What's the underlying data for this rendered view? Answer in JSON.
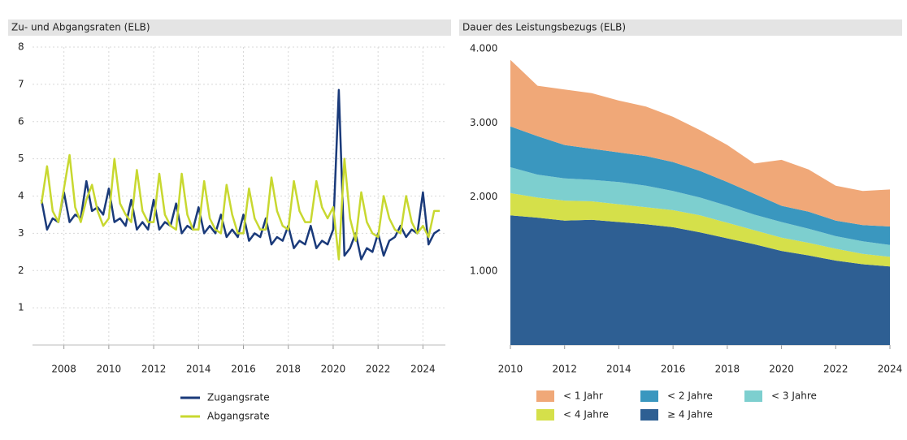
{
  "chart_data": [
    {
      "type": "line",
      "title": "Zu- und Abgangsraten (ELB)",
      "x": [
        2007,
        2007.25,
        2007.5,
        2007.75,
        2008,
        2008.25,
        2008.5,
        2008.75,
        2009,
        2009.25,
        2009.5,
        2009.75,
        2010,
        2010.25,
        2010.5,
        2010.75,
        2011,
        2011.25,
        2011.5,
        2011.75,
        2012,
        2012.25,
        2012.5,
        2012.75,
        2013,
        2013.25,
        2013.5,
        2013.75,
        2014,
        2014.25,
        2014.5,
        2014.75,
        2015,
        2015.25,
        2015.5,
        2015.75,
        2016,
        2016.25,
        2016.5,
        2016.75,
        2017,
        2017.25,
        2017.5,
        2017.75,
        2018,
        2018.25,
        2018.5,
        2018.75,
        2019,
        2019.25,
        2019.5,
        2019.75,
        2020,
        2020.25,
        2020.5,
        2020.75,
        2021,
        2021.25,
        2021.5,
        2021.75,
        2022,
        2022.25,
        2022.5,
        2022.75,
        2023,
        2023.25,
        2023.5,
        2023.75,
        2024,
        2024.25,
        2024.5,
        2024.75
      ],
      "series": [
        {
          "name": "Zugangsrate",
          "color": "#1a3a7a",
          "values": [
            3.9,
            3.1,
            3.4,
            3.3,
            4.1,
            3.3,
            3.5,
            3.4,
            4.4,
            3.6,
            3.7,
            3.5,
            4.2,
            3.3,
            3.4,
            3.2,
            3.9,
            3.1,
            3.3,
            3.1,
            3.9,
            3.1,
            3.3,
            3.2,
            3.8,
            3.0,
            3.2,
            3.1,
            3.7,
            3.0,
            3.2,
            3.0,
            3.5,
            2.9,
            3.1,
            2.9,
            3.5,
            2.8,
            3.0,
            2.9,
            3.4,
            2.7,
            2.9,
            2.8,
            3.2,
            2.6,
            2.8,
            2.7,
            3.2,
            2.6,
            2.8,
            2.7,
            3.1,
            6.85,
            2.4,
            2.6,
            3.0,
            2.3,
            2.6,
            2.5,
            3.0,
            2.4,
            2.8,
            2.9,
            3.2,
            2.9,
            3.1,
            3.0,
            4.1,
            2.7,
            3.0,
            3.1
          ]
        },
        {
          "name": "Abgangsrate",
          "color": "#c8d830",
          "values": [
            3.8,
            4.8,
            3.6,
            3.3,
            4.2,
            5.1,
            3.7,
            3.3,
            3.9,
            4.3,
            3.6,
            3.2,
            3.4,
            5.0,
            3.8,
            3.5,
            3.3,
            4.7,
            3.6,
            3.3,
            3.3,
            4.6,
            3.5,
            3.2,
            3.1,
            4.6,
            3.5,
            3.1,
            3.1,
            4.4,
            3.4,
            3.1,
            3.0,
            4.3,
            3.5,
            3.0,
            3.0,
            4.2,
            3.4,
            3.1,
            3.1,
            4.5,
            3.6,
            3.2,
            3.1,
            4.4,
            3.6,
            3.3,
            3.3,
            4.4,
            3.7,
            3.4,
            3.7,
            2.3,
            5.0,
            3.4,
            2.8,
            4.1,
            3.3,
            3.0,
            2.9,
            4.0,
            3.4,
            3.1,
            3.0,
            4.0,
            3.3,
            3.0,
            3.2,
            2.9,
            3.6,
            3.6
          ]
        }
      ],
      "xlim": [
        2006.6,
        2025
      ],
      "xticks": [
        2008,
        2010,
        2012,
        2014,
        2016,
        2018,
        2020,
        2022,
        2024
      ],
      "ylim": [
        0,
        8
      ],
      "yticks": [
        1,
        2,
        3,
        4,
        5,
        6,
        7,
        8
      ],
      "grid": true
    },
    {
      "type": "area",
      "title": "Dauer des Leistungsbezugs (ELB)",
      "x": [
        2010,
        2011,
        2012,
        2013,
        2014,
        2015,
        2016,
        2017,
        2018,
        2019,
        2020,
        2021,
        2022,
        2023,
        2024
      ],
      "series": [
        {
          "name": "≥ 4 Jahre",
          "color": "#2e5f93",
          "values": [
            1750,
            1720,
            1680,
            1690,
            1660,
            1630,
            1590,
            1520,
            1440,
            1360,
            1270,
            1210,
            1140,
            1090,
            1060
          ]
        },
        {
          "name": "< 4 Jahre",
          "color": "#d5e04a",
          "values": [
            300,
            270,
            270,
            250,
            240,
            230,
            230,
            230,
            210,
            190,
            180,
            170,
            160,
            140,
            130
          ]
        },
        {
          "name": "< 3 Jahre",
          "color": "#7dcfcf",
          "values": [
            350,
            310,
            300,
            290,
            300,
            290,
            260,
            240,
            230,
            210,
            210,
            190,
            170,
            170,
            160
          ]
        },
        {
          "name": "< 2 Jahre",
          "color": "#3a97bf",
          "values": [
            550,
            520,
            450,
            420,
            400,
            400,
            390,
            360,
            320,
            280,
            220,
            230,
            210,
            220,
            250
          ]
        },
        {
          "name": "< 1 Jahr",
          "color": "#f0a878",
          "values": [
            900,
            680,
            750,
            750,
            700,
            670,
            610,
            550,
            500,
            410,
            620,
            570,
            470,
            460,
            500
          ]
        }
      ],
      "legend_order": [
        4,
        3,
        2,
        1,
        0
      ],
      "xlim": [
        2010,
        2024
      ],
      "xticks": [
        2010,
        2012,
        2014,
        2016,
        2018,
        2020,
        2022,
        2024
      ],
      "ylim": [
        0,
        4000
      ],
      "yticks": [
        {
          "value": 1000,
          "label": "1.000"
        },
        {
          "value": 2000,
          "label": "2.000"
        },
        {
          "value": 3000,
          "label": "3.000"
        },
        {
          "value": 4000,
          "label": "4.000"
        }
      ],
      "grid": false
    }
  ]
}
